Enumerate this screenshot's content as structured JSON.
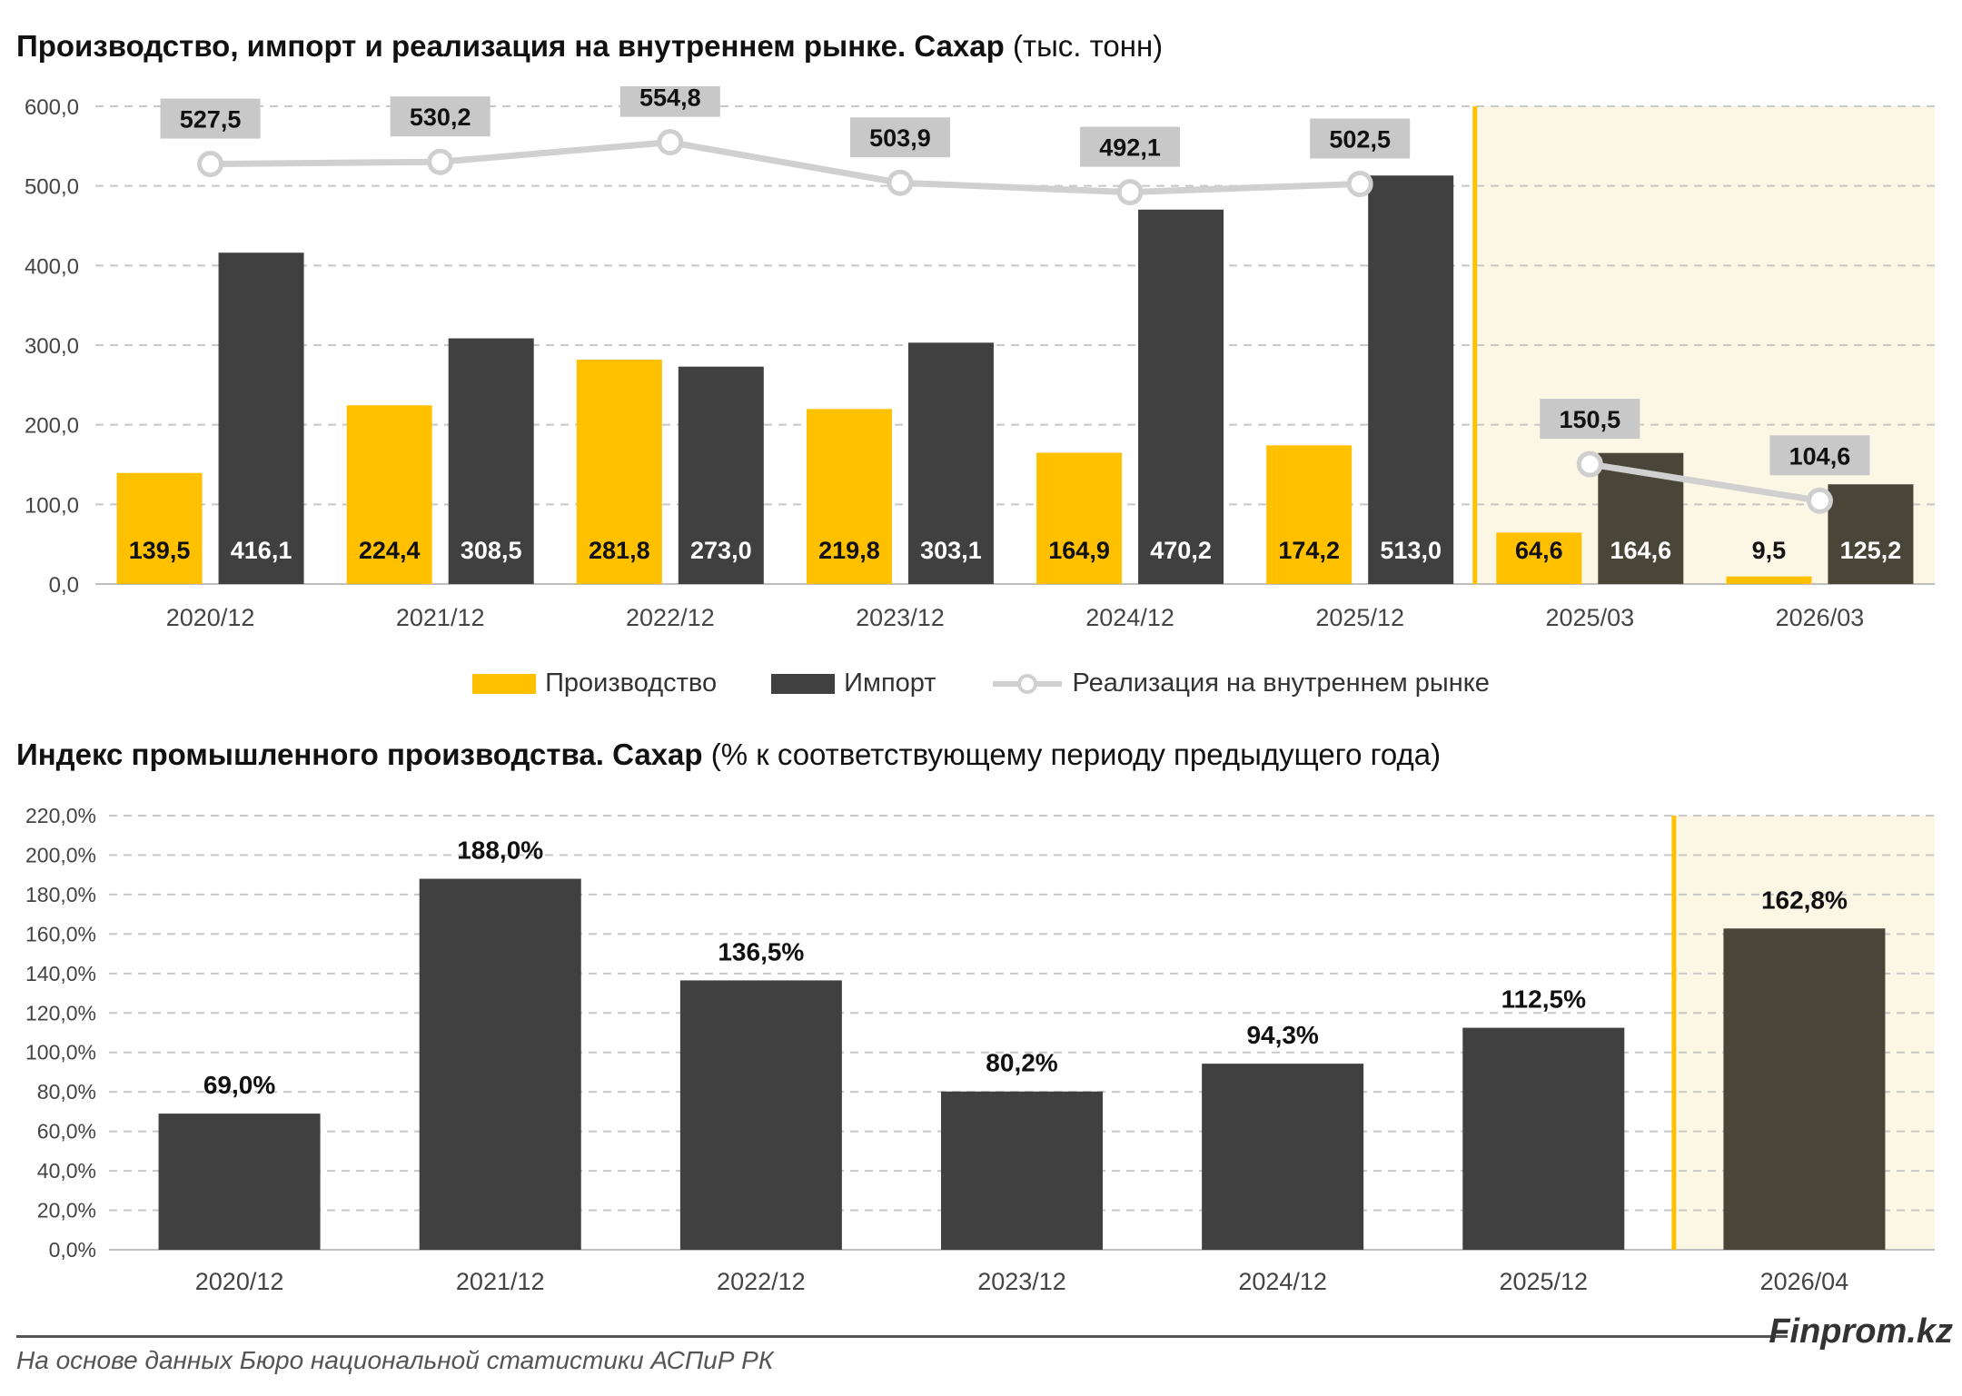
{
  "chart1": {
    "title_bold": "Производство, импорт и реализация на внутреннем рынке. Сахар",
    "title_unit": "(тыс. тонн)",
    "chart_data": {
      "type": "bar",
      "categories": [
        "2020/12",
        "2021/12",
        "2022/12",
        "2023/12",
        "2024/12",
        "2025/12",
        "2025/03",
        "2026/03"
      ],
      "series": [
        {
          "name": "Производство",
          "type": "bar",
          "color": "#ffc000",
          "values": [
            139.5,
            224.4,
            281.8,
            219.8,
            164.9,
            174.2,
            64.6,
            9.5
          ],
          "labels": [
            "139,5",
            "224,4",
            "281,8",
            "219,8",
            "164,9",
            "174,2",
            "64,6",
            "9,5"
          ]
        },
        {
          "name": "Импорт",
          "type": "bar",
          "color": "#404040",
          "values": [
            416.1,
            308.5,
            273.0,
            303.1,
            470.2,
            513.0,
            164.6,
            125.2
          ],
          "labels": [
            "416,1",
            "308,5",
            "273,0",
            "303,1",
            "470,2",
            "513,0",
            "164,6",
            "125,2"
          ]
        },
        {
          "name": "Реализация на внутреннем рынке",
          "type": "line",
          "color": "#d0d0d0",
          "values": [
            527.5,
            530.2,
            554.8,
            503.9,
            492.1,
            502.5,
            150.5,
            104.6
          ],
          "labels": [
            "527,5",
            "530,2",
            "554,8",
            "503,9",
            "492,1",
            "502,5",
            "150,5",
            "104,6"
          ]
        }
      ],
      "ylim": [
        0,
        600
      ],
      "yticks": [
        "0,0",
        "100,0",
        "200,0",
        "300,0",
        "400,0",
        "500,0",
        "600,0"
      ],
      "line_segments": [
        [
          0,
          5
        ],
        [
          6,
          7
        ]
      ],
      "highlight_from_index": 6,
      "highlight_color": "#fbf7e4",
      "divider_color": "#ffc000",
      "grid": "dashed horizontal",
      "legend": "bottom-center"
    }
  },
  "chart2": {
    "title_bold": "Индекс промышленного производства. Сахар",
    "title_unit": "(% к соответствующему периоду предыдущего года)",
    "chart_data": {
      "type": "bar",
      "categories": [
        "2020/12",
        "2021/12",
        "2022/12",
        "2023/12",
        "2024/12",
        "2025/12",
        "2026/04"
      ],
      "values": [
        69.0,
        188.0,
        136.5,
        80.2,
        94.3,
        112.5,
        162.8
      ],
      "labels": [
        "69,0%",
        "188,0%",
        "136,5%",
        "80,2%",
        "94,3%",
        "112,5%",
        "162,8%"
      ],
      "color": "#404040",
      "highlight_bar_color": "#4a4539",
      "ylim": [
        0,
        220
      ],
      "yticks": [
        "0,0%",
        "20,0%",
        "40,0%",
        "60,0%",
        "80,0%",
        "100,0%",
        "120,0%",
        "140,0%",
        "160,0%",
        "180,0%",
        "200,0%",
        "220,0%"
      ],
      "highlight_from_index": 6,
      "highlight_color": "#fbf7e4",
      "divider_color": "#ffc000",
      "grid": "dashed horizontal"
    }
  },
  "footer": {
    "brand": "Finprom.kz",
    "source": "На основе данных Бюро национальной статистики АСПиР РК"
  }
}
